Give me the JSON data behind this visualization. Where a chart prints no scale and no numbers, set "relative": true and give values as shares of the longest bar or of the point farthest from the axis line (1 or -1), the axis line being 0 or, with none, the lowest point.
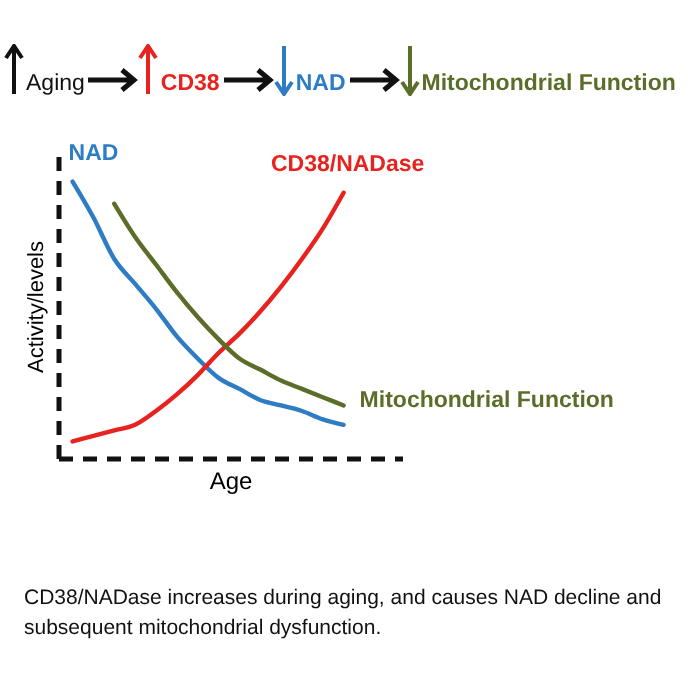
{
  "chart_data": {
    "type": "line",
    "relative": true,
    "xlabel": "Age",
    "ylabel": "Activity/levels",
    "legend": false,
    "categories": [
      null,
      null,
      null,
      null,
      null,
      null,
      null,
      null,
      null,
      null,
      null,
      null,
      null,
      null
    ],
    "series": [
      {
        "name": "NAD",
        "color": "#2e7dc4",
        "values": [
          1.0,
          0.87,
          0.72,
          0.63,
          0.54,
          0.44,
          0.36,
          0.29,
          0.25,
          0.21,
          0.19,
          0.17,
          0.14,
          0.12
        ]
      },
      {
        "name": "CD38/NADase",
        "color": "#e8231f",
        "values": [
          0.06,
          0.08,
          0.1,
          0.12,
          0.17,
          0.23,
          0.3,
          0.38,
          0.45,
          0.53,
          0.62,
          0.72,
          0.83,
          0.96
        ]
      },
      {
        "name": "Mitochondrial Function",
        "color": "#5a6e2a",
        "values": [
          null,
          null,
          0.92,
          0.8,
          0.7,
          0.6,
          0.51,
          0.43,
          0.36,
          0.32,
          0.28,
          0.25,
          0.22,
          0.19
        ]
      }
    ],
    "annotations": [
      "Aging",
      "CD38",
      "NAD",
      "Mitochondrial Function",
      "CD38/NADase increases during aging, and causes NAD decline and subsequent mitochondrial dysfunction."
    ]
  }
}
